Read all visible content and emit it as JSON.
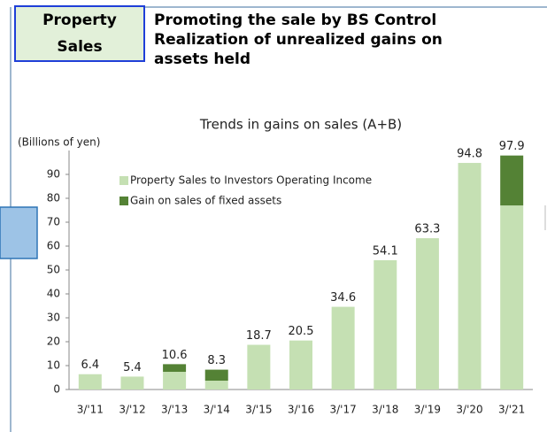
{
  "header": {
    "label": "Property Sales",
    "title_lines": [
      "Promoting the sale by BS Control",
      "Realization of unrealized gains on",
      "assets held"
    ]
  },
  "chart_data": {
    "type": "bar",
    "stacked": true,
    "title": "Trends in gains on sales (A+B)",
    "y_label": "(Billions of yen)",
    "categories": [
      "3/'11",
      "3/'12",
      "3/'13",
      "3/'14",
      "3/'15",
      "3/'16",
      "3/'17",
      "3/'18",
      "3/'19",
      "3/'20",
      "3/'21"
    ],
    "series": [
      {
        "name": "Property Sales to Investors Operating Income",
        "color": "#c5e0b3",
        "values": [
          6.4,
          5.4,
          7.4,
          3.7,
          18.7,
          20.5,
          34.6,
          54.1,
          63.3,
          94.8,
          77.0
        ]
      },
      {
        "name": "Gain on sales of fixed assets",
        "color": "#548235",
        "values": [
          0,
          0,
          3.2,
          4.6,
          0,
          0,
          0,
          0,
          0,
          0,
          20.9
        ]
      }
    ],
    "totals": [
      6.4,
      5.4,
      10.6,
      8.3,
      18.7,
      20.5,
      34.6,
      54.1,
      63.3,
      94.8,
      97.9
    ],
    "ylim": [
      0,
      100
    ],
    "yticks": [
      0,
      10,
      20,
      30,
      40,
      50,
      60,
      70,
      80,
      90
    ],
    "grid": false,
    "legend": "upper left"
  }
}
